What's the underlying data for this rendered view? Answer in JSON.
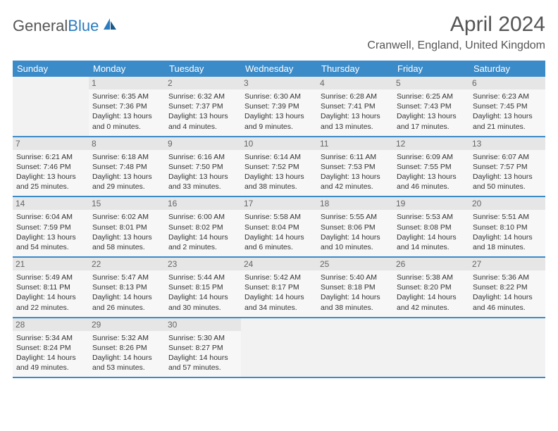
{
  "logo": {
    "text1": "General",
    "text2": "Blue"
  },
  "title": "April 2024",
  "location": "Cranwell, England, United Kingdom",
  "colors": {
    "header_bg": "#3b8bc9",
    "header_text": "#ffffff",
    "daynum_bg": "#e6e6e6",
    "cell_bg": "#f7f7f7",
    "empty_bg": "#f2f2f2",
    "border": "#3b8bc9"
  },
  "dayNames": [
    "Sunday",
    "Monday",
    "Tuesday",
    "Wednesday",
    "Thursday",
    "Friday",
    "Saturday"
  ],
  "weeks": [
    [
      null,
      {
        "n": "1",
        "sunrise": "Sunrise: 6:35 AM",
        "sunset": "Sunset: 7:36 PM",
        "dl1": "Daylight: 13 hours",
        "dl2": "and 0 minutes."
      },
      {
        "n": "2",
        "sunrise": "Sunrise: 6:32 AM",
        "sunset": "Sunset: 7:37 PM",
        "dl1": "Daylight: 13 hours",
        "dl2": "and 4 minutes."
      },
      {
        "n": "3",
        "sunrise": "Sunrise: 6:30 AM",
        "sunset": "Sunset: 7:39 PM",
        "dl1": "Daylight: 13 hours",
        "dl2": "and 9 minutes."
      },
      {
        "n": "4",
        "sunrise": "Sunrise: 6:28 AM",
        "sunset": "Sunset: 7:41 PM",
        "dl1": "Daylight: 13 hours",
        "dl2": "and 13 minutes."
      },
      {
        "n": "5",
        "sunrise": "Sunrise: 6:25 AM",
        "sunset": "Sunset: 7:43 PM",
        "dl1": "Daylight: 13 hours",
        "dl2": "and 17 minutes."
      },
      {
        "n": "6",
        "sunrise": "Sunrise: 6:23 AM",
        "sunset": "Sunset: 7:45 PM",
        "dl1": "Daylight: 13 hours",
        "dl2": "and 21 minutes."
      }
    ],
    [
      {
        "n": "7",
        "sunrise": "Sunrise: 6:21 AM",
        "sunset": "Sunset: 7:46 PM",
        "dl1": "Daylight: 13 hours",
        "dl2": "and 25 minutes."
      },
      {
        "n": "8",
        "sunrise": "Sunrise: 6:18 AM",
        "sunset": "Sunset: 7:48 PM",
        "dl1": "Daylight: 13 hours",
        "dl2": "and 29 minutes."
      },
      {
        "n": "9",
        "sunrise": "Sunrise: 6:16 AM",
        "sunset": "Sunset: 7:50 PM",
        "dl1": "Daylight: 13 hours",
        "dl2": "and 33 minutes."
      },
      {
        "n": "10",
        "sunrise": "Sunrise: 6:14 AM",
        "sunset": "Sunset: 7:52 PM",
        "dl1": "Daylight: 13 hours",
        "dl2": "and 38 minutes."
      },
      {
        "n": "11",
        "sunrise": "Sunrise: 6:11 AM",
        "sunset": "Sunset: 7:53 PM",
        "dl1": "Daylight: 13 hours",
        "dl2": "and 42 minutes."
      },
      {
        "n": "12",
        "sunrise": "Sunrise: 6:09 AM",
        "sunset": "Sunset: 7:55 PM",
        "dl1": "Daylight: 13 hours",
        "dl2": "and 46 minutes."
      },
      {
        "n": "13",
        "sunrise": "Sunrise: 6:07 AM",
        "sunset": "Sunset: 7:57 PM",
        "dl1": "Daylight: 13 hours",
        "dl2": "and 50 minutes."
      }
    ],
    [
      {
        "n": "14",
        "sunrise": "Sunrise: 6:04 AM",
        "sunset": "Sunset: 7:59 PM",
        "dl1": "Daylight: 13 hours",
        "dl2": "and 54 minutes."
      },
      {
        "n": "15",
        "sunrise": "Sunrise: 6:02 AM",
        "sunset": "Sunset: 8:01 PM",
        "dl1": "Daylight: 13 hours",
        "dl2": "and 58 minutes."
      },
      {
        "n": "16",
        "sunrise": "Sunrise: 6:00 AM",
        "sunset": "Sunset: 8:02 PM",
        "dl1": "Daylight: 14 hours",
        "dl2": "and 2 minutes."
      },
      {
        "n": "17",
        "sunrise": "Sunrise: 5:58 AM",
        "sunset": "Sunset: 8:04 PM",
        "dl1": "Daylight: 14 hours",
        "dl2": "and 6 minutes."
      },
      {
        "n": "18",
        "sunrise": "Sunrise: 5:55 AM",
        "sunset": "Sunset: 8:06 PM",
        "dl1": "Daylight: 14 hours",
        "dl2": "and 10 minutes."
      },
      {
        "n": "19",
        "sunrise": "Sunrise: 5:53 AM",
        "sunset": "Sunset: 8:08 PM",
        "dl1": "Daylight: 14 hours",
        "dl2": "and 14 minutes."
      },
      {
        "n": "20",
        "sunrise": "Sunrise: 5:51 AM",
        "sunset": "Sunset: 8:10 PM",
        "dl1": "Daylight: 14 hours",
        "dl2": "and 18 minutes."
      }
    ],
    [
      {
        "n": "21",
        "sunrise": "Sunrise: 5:49 AM",
        "sunset": "Sunset: 8:11 PM",
        "dl1": "Daylight: 14 hours",
        "dl2": "and 22 minutes."
      },
      {
        "n": "22",
        "sunrise": "Sunrise: 5:47 AM",
        "sunset": "Sunset: 8:13 PM",
        "dl1": "Daylight: 14 hours",
        "dl2": "and 26 minutes."
      },
      {
        "n": "23",
        "sunrise": "Sunrise: 5:44 AM",
        "sunset": "Sunset: 8:15 PM",
        "dl1": "Daylight: 14 hours",
        "dl2": "and 30 minutes."
      },
      {
        "n": "24",
        "sunrise": "Sunrise: 5:42 AM",
        "sunset": "Sunset: 8:17 PM",
        "dl1": "Daylight: 14 hours",
        "dl2": "and 34 minutes."
      },
      {
        "n": "25",
        "sunrise": "Sunrise: 5:40 AM",
        "sunset": "Sunset: 8:18 PM",
        "dl1": "Daylight: 14 hours",
        "dl2": "and 38 minutes."
      },
      {
        "n": "26",
        "sunrise": "Sunrise: 5:38 AM",
        "sunset": "Sunset: 8:20 PM",
        "dl1": "Daylight: 14 hours",
        "dl2": "and 42 minutes."
      },
      {
        "n": "27",
        "sunrise": "Sunrise: 5:36 AM",
        "sunset": "Sunset: 8:22 PM",
        "dl1": "Daylight: 14 hours",
        "dl2": "and 46 minutes."
      }
    ],
    [
      {
        "n": "28",
        "sunrise": "Sunrise: 5:34 AM",
        "sunset": "Sunset: 8:24 PM",
        "dl1": "Daylight: 14 hours",
        "dl2": "and 49 minutes."
      },
      {
        "n": "29",
        "sunrise": "Sunrise: 5:32 AM",
        "sunset": "Sunset: 8:26 PM",
        "dl1": "Daylight: 14 hours",
        "dl2": "and 53 minutes."
      },
      {
        "n": "30",
        "sunrise": "Sunrise: 5:30 AM",
        "sunset": "Sunset: 8:27 PM",
        "dl1": "Daylight: 14 hours",
        "dl2": "and 57 minutes."
      },
      null,
      null,
      null,
      null
    ]
  ]
}
